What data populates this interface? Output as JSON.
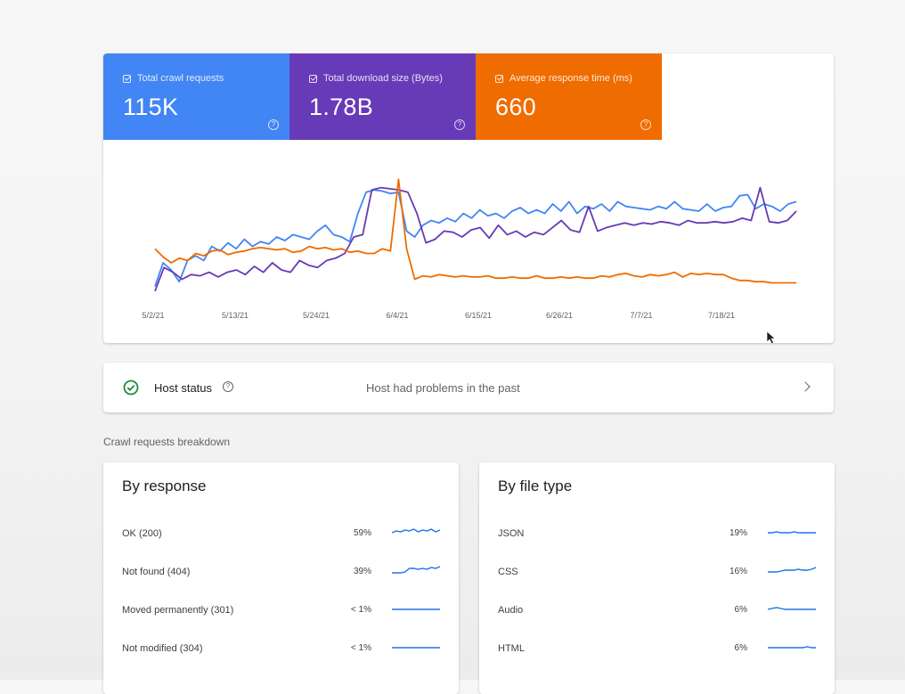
{
  "metrics": [
    {
      "label": "Total crawl requests",
      "value": "115K",
      "color": "#4285f4"
    },
    {
      "label": "Total download size (Bytes)",
      "value": "1.78B",
      "color": "#673ab7"
    },
    {
      "label": "Average response time (ms)",
      "value": "660",
      "color": "#ef6c00"
    }
  ],
  "chart_data": {
    "type": "line",
    "x_tick_labels": [
      "5/2/21",
      "5/13/21",
      "5/24/21",
      "6/4/21",
      "6/15/21",
      "6/26/21",
      "7/7/21",
      "7/18/21"
    ],
    "series": [
      {
        "color": "#4285f4",
        "values": [
          8,
          28,
          22,
          12,
          30,
          34,
          30,
          42,
          38,
          45,
          40,
          48,
          42,
          46,
          44,
          50,
          47,
          52,
          50,
          48,
          55,
          60,
          52,
          50,
          46,
          70,
          88,
          90,
          89,
          87,
          88,
          55,
          50,
          60,
          64,
          62,
          66,
          63,
          70,
          66,
          73,
          68,
          70,
          66,
          72,
          75,
          70,
          73,
          70,
          78,
          72,
          80,
          70,
          76,
          74,
          78,
          72,
          80,
          76,
          75,
          74,
          73,
          76,
          74,
          80,
          74,
          73,
          72,
          78,
          72,
          75,
          76,
          85,
          86,
          74,
          78,
          76,
          72,
          78,
          80
        ]
      },
      {
        "color": "#673ab7",
        "values": [
          4,
          24,
          20,
          14,
          18,
          17,
          20,
          16,
          20,
          22,
          18,
          25,
          20,
          28,
          22,
          20,
          30,
          26,
          24,
          30,
          32,
          36,
          50,
          52,
          90,
          92,
          91,
          90,
          88,
          70,
          45,
          48,
          55,
          54,
          50,
          56,
          58,
          49,
          60,
          52,
          55,
          50,
          54,
          52,
          58,
          64,
          56,
          54,
          76,
          55,
          58,
          60,
          62,
          60,
          62,
          61,
          63,
          62,
          60,
          64,
          62,
          62,
          63,
          62,
          63,
          66,
          64,
          92,
          63,
          62,
          64,
          72
        ]
      },
      {
        "color": "#ef6c00",
        "values": [
          40,
          33,
          28,
          32,
          30,
          36,
          34,
          38,
          39,
          35,
          37,
          38,
          40,
          41,
          40,
          39,
          40,
          37,
          38,
          42,
          40,
          41,
          39,
          40,
          37,
          38,
          36,
          36,
          40,
          38,
          99,
          40,
          14,
          17,
          16,
          18,
          17,
          16,
          17,
          16,
          16,
          17,
          15,
          15,
          16,
          15,
          15,
          17,
          15,
          15,
          16,
          15,
          16,
          15,
          15,
          17,
          16,
          18,
          19,
          17,
          16,
          18,
          17,
          18,
          20,
          16,
          19,
          18,
          19,
          18,
          18,
          15,
          13,
          13,
          12,
          12,
          11,
          11,
          11,
          11
        ]
      }
    ]
  },
  "host_status": {
    "label": "Host status",
    "message": "Host had problems in the past"
  },
  "breakdown_title": "Crawl requests breakdown",
  "by_response": {
    "title": "By response",
    "rows": [
      {
        "label": "OK (200)",
        "pct": "59%"
      },
      {
        "label": "Not found (404)",
        "pct": "39%"
      },
      {
        "label": "Moved permanently (301)",
        "pct": "< 1%"
      },
      {
        "label": "Not modified (304)",
        "pct": "< 1%"
      }
    ]
  },
  "by_file_type": {
    "title": "By file type",
    "rows": [
      {
        "label": "JSON",
        "pct": "19%"
      },
      {
        "label": "CSS",
        "pct": "16%"
      },
      {
        "label": "Audio",
        "pct": "6%"
      },
      {
        "label": "HTML",
        "pct": "6%"
      }
    ]
  }
}
